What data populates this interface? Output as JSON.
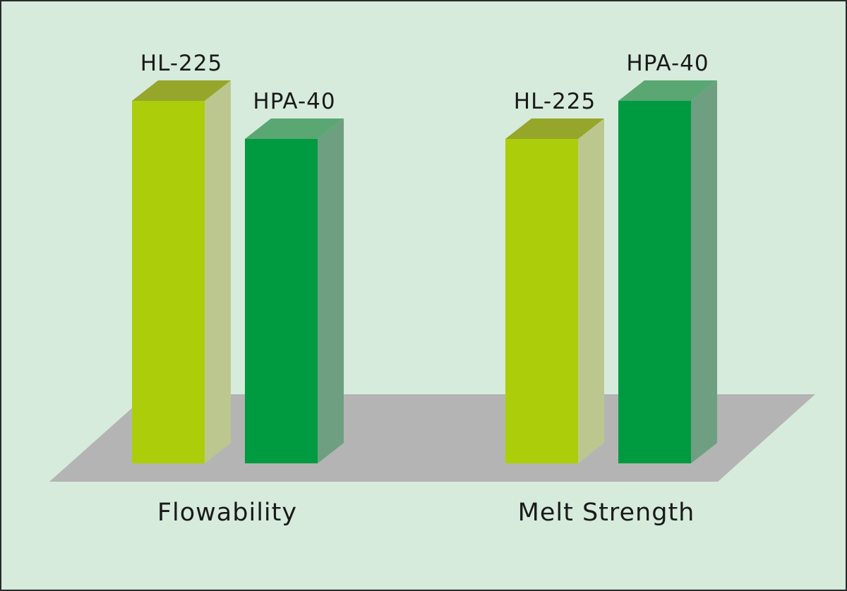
{
  "chart_data": {
    "type": "bar",
    "categories": [
      "Flowability",
      "Melt Strength"
    ],
    "series": [
      {
        "name": "HL-225",
        "values": [
          100,
          89.5
        ]
      },
      {
        "name": "HPA-40",
        "values": [
          89.5,
          100
        ]
      }
    ],
    "title": "",
    "xlabel": "",
    "ylabel": "",
    "ylim": [
      0,
      100
    ],
    "grid": false,
    "legend": "none (series labelled above each bar)",
    "three_d": true
  },
  "colors": {
    "background": "#d6ebdc",
    "floor": "#b4b4b4",
    "HL-225": {
      "front": "#acce0a",
      "side": "#bcc78f",
      "top": "#96a62a"
    },
    "HPA-40": {
      "front": "#009a41",
      "side": "#6e9f80",
      "top": "#5aa774"
    }
  }
}
